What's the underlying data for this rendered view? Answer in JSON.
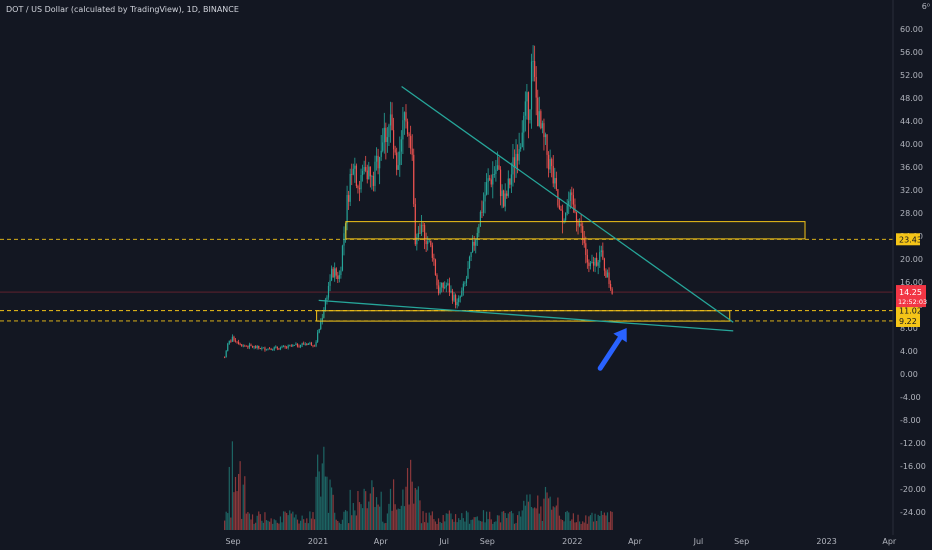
{
  "header": {
    "title": "DOT / US Dollar (calculated by TradingView), 1D, BINANCE",
    "corner": "6⁰"
  },
  "chart_data": {
    "type": "candlestick",
    "symbol": "DOT / US Dollar",
    "interval": "1D",
    "exchange": "BINANCE",
    "grid": false,
    "y_axis": {
      "ticks": [
        "60.00",
        "56.00",
        "52.00",
        "48.00",
        "44.00",
        "40.00",
        "36.00",
        "32.00",
        "28.00",
        "24.00",
        "20.00",
        "16.00",
        "12.00",
        "8.00",
        "4.00",
        "0.00",
        "-4.00",
        "-8.00",
        "-12.00",
        "-16.00",
        "-20.00",
        "-24.00"
      ],
      "range": [
        -25,
        62
      ]
    },
    "x_axis": {
      "ticks": [
        {
          "label": "Sep",
          "date": "2020-09-01"
        },
        {
          "label": "2021",
          "date": "2021-01-01"
        },
        {
          "label": "Apr",
          "date": "2021-04-01"
        },
        {
          "label": "Jul",
          "date": "2021-07-01"
        },
        {
          "label": "Sep",
          "date": "2021-09-01"
        },
        {
          "label": "2022",
          "date": "2022-01-01"
        },
        {
          "label": "Apr",
          "date": "2022-04-01"
        },
        {
          "label": "Jul",
          "date": "2022-07-01"
        },
        {
          "label": "Sep",
          "date": "2022-09-01"
        },
        {
          "label": "2023",
          "date": "2023-01-01"
        },
        {
          "label": "Apr",
          "date": "2023-04-01"
        }
      ]
    },
    "price_path": [
      [
        "2020-08-20",
        2.9
      ],
      [
        "2020-08-25",
        5.5
      ],
      [
        "2020-09-01",
        6.2
      ],
      [
        "2020-09-15",
        5.0
      ],
      [
        "2020-10-15",
        4.4
      ],
      [
        "2020-11-15",
        4.6
      ],
      [
        "2020-12-15",
        5.3
      ],
      [
        "2020-12-28",
        5.2
      ],
      [
        "2021-01-05",
        9.0
      ],
      [
        "2021-01-20",
        17.5
      ],
      [
        "2021-02-01",
        17.0
      ],
      [
        "2021-02-10",
        28.0
      ],
      [
        "2021-02-20",
        38.0
      ],
      [
        "2021-03-01",
        32.0
      ],
      [
        "2021-03-10",
        37.0
      ],
      [
        "2021-03-20",
        33.0
      ],
      [
        "2021-04-01",
        40.0
      ],
      [
        "2021-04-15",
        44.0
      ],
      [
        "2021-04-25",
        33.0
      ],
      [
        "2021-05-05",
        45.0
      ],
      [
        "2021-05-15",
        41.0
      ],
      [
        "2021-05-20",
        22.0
      ],
      [
        "2021-06-01",
        25.0
      ],
      [
        "2021-06-15",
        21.0
      ],
      [
        "2021-06-22",
        14.5
      ],
      [
        "2021-07-05",
        15.5
      ],
      [
        "2021-07-20",
        12.0
      ],
      [
        "2021-08-01",
        16.0
      ],
      [
        "2021-08-15",
        24.0
      ],
      [
        "2021-09-01",
        33.0
      ],
      [
        "2021-09-15",
        36.0
      ],
      [
        "2021-09-25",
        29.0
      ],
      [
        "2021-10-15",
        40.0
      ],
      [
        "2021-11-01",
        48.0
      ],
      [
        "2021-11-04",
        54.0
      ],
      [
        "2021-11-15",
        43.0
      ],
      [
        "2021-12-01",
        36.0
      ],
      [
        "2021-12-15",
        27.0
      ],
      [
        "2021-12-28",
        30.0
      ],
      [
        "2022-01-10",
        27.0
      ],
      [
        "2022-01-25",
        18.0
      ],
      [
        "2022-02-10",
        21.0
      ],
      [
        "2022-02-20",
        17.0
      ],
      [
        "2022-02-28",
        14.25
      ]
    ],
    "price_label": {
      "value": "14.25",
      "sub": "12:52:03",
      "color": "#f23645"
    },
    "levels": [
      {
        "value": 23.43,
        "label": "23.43",
        "color": "#f5c518",
        "style": "dashed"
      },
      {
        "value": 11.02,
        "label": "11.02",
        "color": "#f5c518",
        "style": "dashed"
      },
      {
        "value": 9.22,
        "label": "9.22",
        "color": "#f5c518",
        "style": "dashed"
      }
    ],
    "annotations": [
      {
        "kind": "rectangle",
        "from": [
          "2021-02-10",
          26.5
        ],
        "to": [
          "2022-12-01",
          23.5
        ],
        "color": "#f5c518"
      },
      {
        "kind": "rectangle",
        "from": [
          "2020-12-30",
          11.0
        ],
        "to": [
          "2022-08-15",
          9.2
        ],
        "color": "#f5c518"
      },
      {
        "kind": "trendline",
        "from": [
          "2021-05-01",
          50.0
        ],
        "to": [
          "2022-08-20",
          9.0
        ],
        "color": "#26a69a"
      },
      {
        "kind": "trendline",
        "from": [
          "2021-01-02",
          12.8
        ],
        "to": [
          "2022-08-20",
          7.5
        ],
        "color": "#26a69a"
      },
      {
        "kind": "arrow",
        "from": [
          "2022-02-10",
          1.0
        ],
        "to": [
          "2022-03-20",
          8.0
        ],
        "color": "#2962ff"
      }
    ]
  }
}
